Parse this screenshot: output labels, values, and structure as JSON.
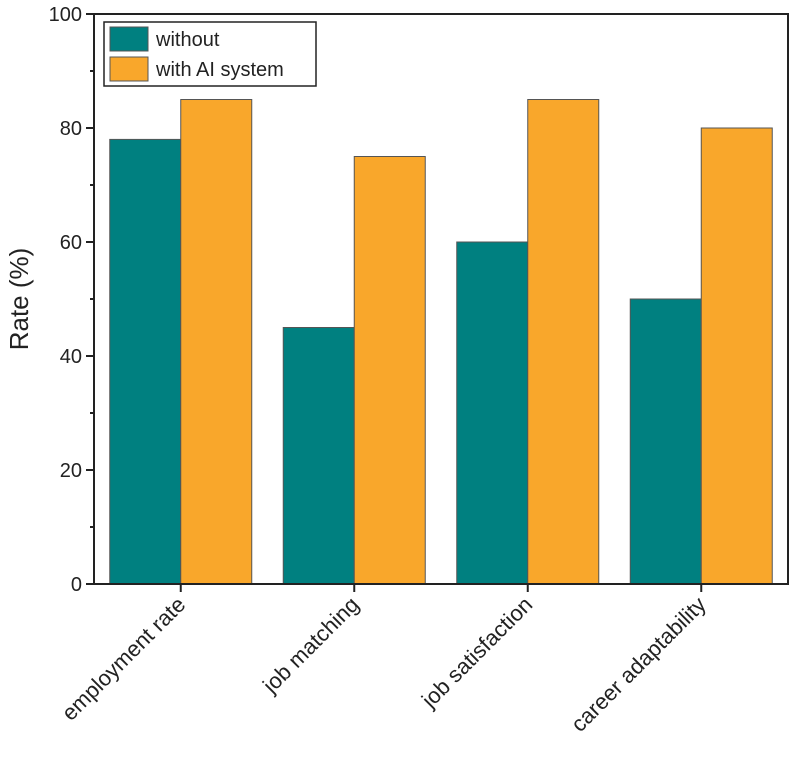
{
  "chart_data": {
    "type": "bar",
    "title": "",
    "xlabel": "",
    "ylabel": "Rate (%)",
    "ylim": [
      0,
      100
    ],
    "yticks": [
      "0",
      "20",
      "40",
      "60",
      "80",
      "100"
    ],
    "categories": [
      "employment rate",
      "job matching",
      "job satisfaction",
      "career adaptability"
    ],
    "series": [
      {
        "name": "without",
        "color": "#008080",
        "values": [
          78,
          45,
          60,
          50
        ]
      },
      {
        "name": "with AI system",
        "color": "#F9A72B",
        "values": [
          85,
          75,
          85,
          80
        ]
      }
    ],
    "legend_position": "top-left",
    "grid": false
  }
}
